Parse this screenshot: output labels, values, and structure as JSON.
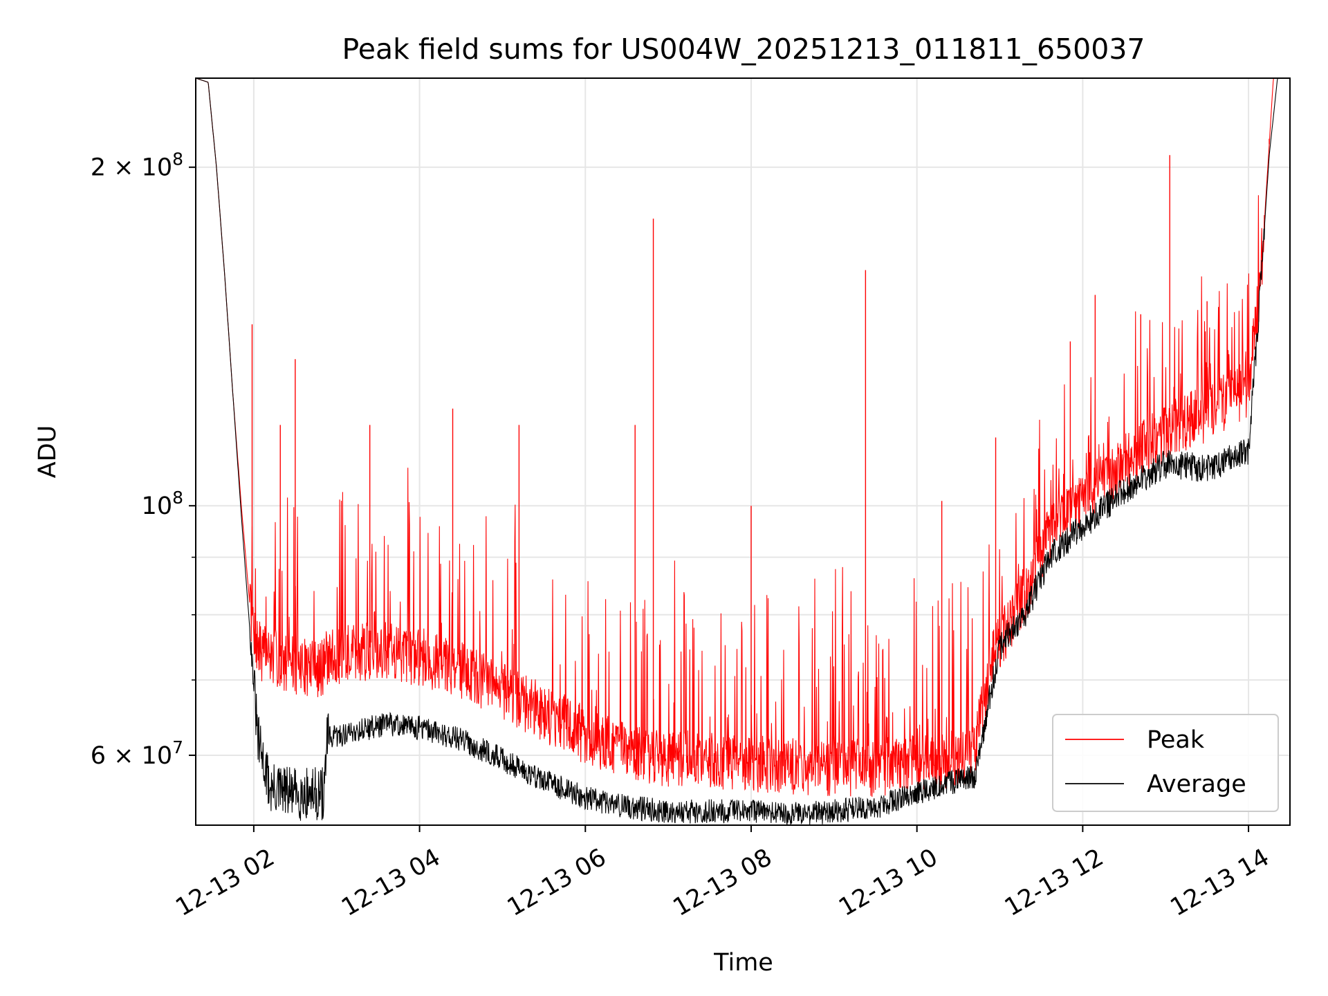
{
  "chart_data": {
    "type": "line",
    "title": "Peak field sums for US004W_20251213_011811_650037",
    "xlabel": "Time",
    "ylabel": "ADU",
    "x_unit": "hours since 2025-12-13 00:00",
    "xlim": [
      1.3,
      14.5
    ],
    "ylim": [
      52000000,
      240000000
    ],
    "y_scale": "log",
    "grid": true,
    "legend_position": "bottom-right",
    "x_ticks": [
      {
        "value": 2,
        "label": "12-13 02"
      },
      {
        "value": 4,
        "label": "12-13 04"
      },
      {
        "value": 6,
        "label": "12-13 06"
      },
      {
        "value": 8,
        "label": "12-13 08"
      },
      {
        "value": 10,
        "label": "12-13 10"
      },
      {
        "value": 12,
        "label": "12-13 12"
      },
      {
        "value": 14,
        "label": "12-13 14"
      }
    ],
    "y_major_ticks": [
      {
        "value": 60000000,
        "mantissa": "6",
        "exponent": "7"
      },
      {
        "value": 100000000,
        "mantissa": "",
        "exponent": "8"
      },
      {
        "value": 200000000,
        "mantissa": "2",
        "exponent": "8"
      }
    ],
    "y_minor_ticks": [
      70000000,
      80000000,
      90000000
    ],
    "times_sign": "×",
    "mantissa_base": "10",
    "series": [
      {
        "name": "Peak",
        "color": "#ff0000",
        "baseline": [
          [
            1.3,
            240000000
          ],
          [
            1.45,
            238000000
          ],
          [
            1.55,
            200000000
          ],
          [
            1.65,
            160000000
          ],
          [
            1.75,
            125000000
          ],
          [
            1.85,
            100000000
          ],
          [
            1.95,
            82000000
          ],
          [
            2.05,
            75000000
          ],
          [
            2.4,
            73000000
          ],
          [
            2.8,
            72000000
          ],
          [
            2.95,
            74000000
          ],
          [
            3.5,
            75000000
          ],
          [
            4.0,
            74000000
          ],
          [
            4.5,
            72000000
          ],
          [
            5.0,
            69000000
          ],
          [
            5.5,
            66000000
          ],
          [
            6.0,
            63000000
          ],
          [
            6.5,
            61000000
          ],
          [
            7.0,
            60000000
          ],
          [
            7.5,
            60000000
          ],
          [
            8.0,
            59500000
          ],
          [
            8.5,
            59000000
          ],
          [
            9.0,
            59000000
          ],
          [
            9.5,
            59000000
          ],
          [
            10.0,
            59500000
          ],
          [
            10.5,
            60000000
          ],
          [
            10.7,
            61000000
          ],
          [
            10.9,
            74000000
          ],
          [
            11.3,
            84000000
          ],
          [
            11.6,
            95000000
          ],
          [
            12.0,
            102000000
          ],
          [
            12.5,
            110000000
          ],
          [
            13.0,
            117000000
          ],
          [
            13.5,
            122000000
          ],
          [
            14.0,
            128000000
          ],
          [
            14.15,
            160000000
          ],
          [
            14.3,
            240000000
          ],
          [
            14.5,
            240000000
          ]
        ],
        "spikes": [
          {
            "x": 1.98,
            "y": 145000000
          },
          {
            "x": 2.5,
            "y": 135000000
          },
          {
            "x": 2.32,
            "y": 118000000
          },
          {
            "x": 3.4,
            "y": 118000000
          },
          {
            "x": 4.4,
            "y": 122000000
          },
          {
            "x": 5.2,
            "y": 118000000
          },
          {
            "x": 6.6,
            "y": 118000000
          },
          {
            "x": 6.82,
            "y": 180000000
          },
          {
            "x": 8.0,
            "y": 100000000
          },
          {
            "x": 9.38,
            "y": 162000000
          },
          {
            "x": 10.3,
            "y": 101000000
          },
          {
            "x": 10.95,
            "y": 115000000
          },
          {
            "x": 11.85,
            "y": 140000000
          },
          {
            "x": 12.15,
            "y": 154000000
          },
          {
            "x": 13.05,
            "y": 205000000
          },
          {
            "x": 14.25,
            "y": 212000000
          },
          {
            "x": 12.7,
            "y": 148000000
          },
          {
            "x": 13.5,
            "y": 152000000
          }
        ]
      },
      {
        "name": "Average",
        "color": "#000000",
        "baseline": [
          [
            1.3,
            240000000
          ],
          [
            1.45,
            238000000
          ],
          [
            1.55,
            200000000
          ],
          [
            1.65,
            160000000
          ],
          [
            1.75,
            125000000
          ],
          [
            1.85,
            98000000
          ],
          [
            1.95,
            78000000
          ],
          [
            2.05,
            62000000
          ],
          [
            2.2,
            56000000
          ],
          [
            2.5,
            55500000
          ],
          [
            2.85,
            55500000
          ],
          [
            2.88,
            62000000
          ],
          [
            3.2,
            63000000
          ],
          [
            3.6,
            64000000
          ],
          [
            4.0,
            63500000
          ],
          [
            4.5,
            62000000
          ],
          [
            5.0,
            59500000
          ],
          [
            5.5,
            57000000
          ],
          [
            6.0,
            55000000
          ],
          [
            6.5,
            54000000
          ],
          [
            7.0,
            53500000
          ],
          [
            7.5,
            53500000
          ],
          [
            8.0,
            53500000
          ],
          [
            8.5,
            53200000
          ],
          [
            9.0,
            53500000
          ],
          [
            9.5,
            54000000
          ],
          [
            10.0,
            55500000
          ],
          [
            10.5,
            57000000
          ],
          [
            10.7,
            57500000
          ],
          [
            10.85,
            66000000
          ],
          [
            11.0,
            75000000
          ],
          [
            11.3,
            80000000
          ],
          [
            11.6,
            90000000
          ],
          [
            12.0,
            96000000
          ],
          [
            12.5,
            103000000
          ],
          [
            13.0,
            109000000
          ],
          [
            13.5,
            108000000
          ],
          [
            14.0,
            112000000
          ],
          [
            14.1,
            140000000
          ],
          [
            14.25,
            205000000
          ],
          [
            14.35,
            240000000
          ],
          [
            14.5,
            240000000
          ]
        ]
      }
    ]
  }
}
